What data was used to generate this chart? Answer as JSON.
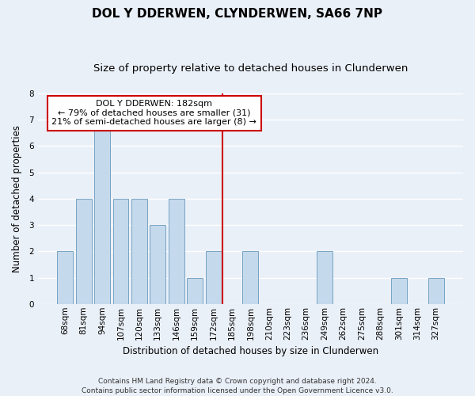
{
  "title": "DOL Y DDERWEN, CLYNDERWEN, SA66 7NP",
  "subtitle": "Size of property relative to detached houses in Clunderwen",
  "xlabel": "Distribution of detached houses by size in Clunderwen",
  "ylabel": "Number of detached properties",
  "categories": [
    "68sqm",
    "81sqm",
    "94sqm",
    "107sqm",
    "120sqm",
    "133sqm",
    "146sqm",
    "159sqm",
    "172sqm",
    "185sqm",
    "198sqm",
    "210sqm",
    "223sqm",
    "236sqm",
    "249sqm",
    "262sqm",
    "275sqm",
    "288sqm",
    "301sqm",
    "314sqm",
    "327sqm"
  ],
  "values": [
    2,
    4,
    7,
    4,
    4,
    3,
    4,
    1,
    2,
    0,
    2,
    0,
    0,
    0,
    2,
    0,
    0,
    0,
    1,
    0,
    1
  ],
  "bar_color": "#c5d9ec",
  "bar_edge_color": "#6699bb",
  "ylim": [
    0,
    8
  ],
  "yticks": [
    0,
    1,
    2,
    3,
    4,
    5,
    6,
    7,
    8
  ],
  "annotation_text": "DOL Y DDERWEN: 182sqm\n← 79% of detached houses are smaller (31)\n21% of semi-detached houses are larger (8) →",
  "annotation_box_color": "#ffffff",
  "annotation_box_edge_color": "#cc0000",
  "vline_x_index": 9.0,
  "vline_color": "#cc0000",
  "footnote": "Contains HM Land Registry data © Crown copyright and database right 2024.\nContains public sector information licensed under the Open Government Licence v3.0.",
  "background_color": "#eaf0f8",
  "grid_color": "#ffffff",
  "title_fontsize": 11,
  "subtitle_fontsize": 9.5,
  "axis_label_fontsize": 8.5,
  "tick_fontsize": 7.5,
  "annotation_fontsize": 8,
  "footnote_fontsize": 6.5
}
